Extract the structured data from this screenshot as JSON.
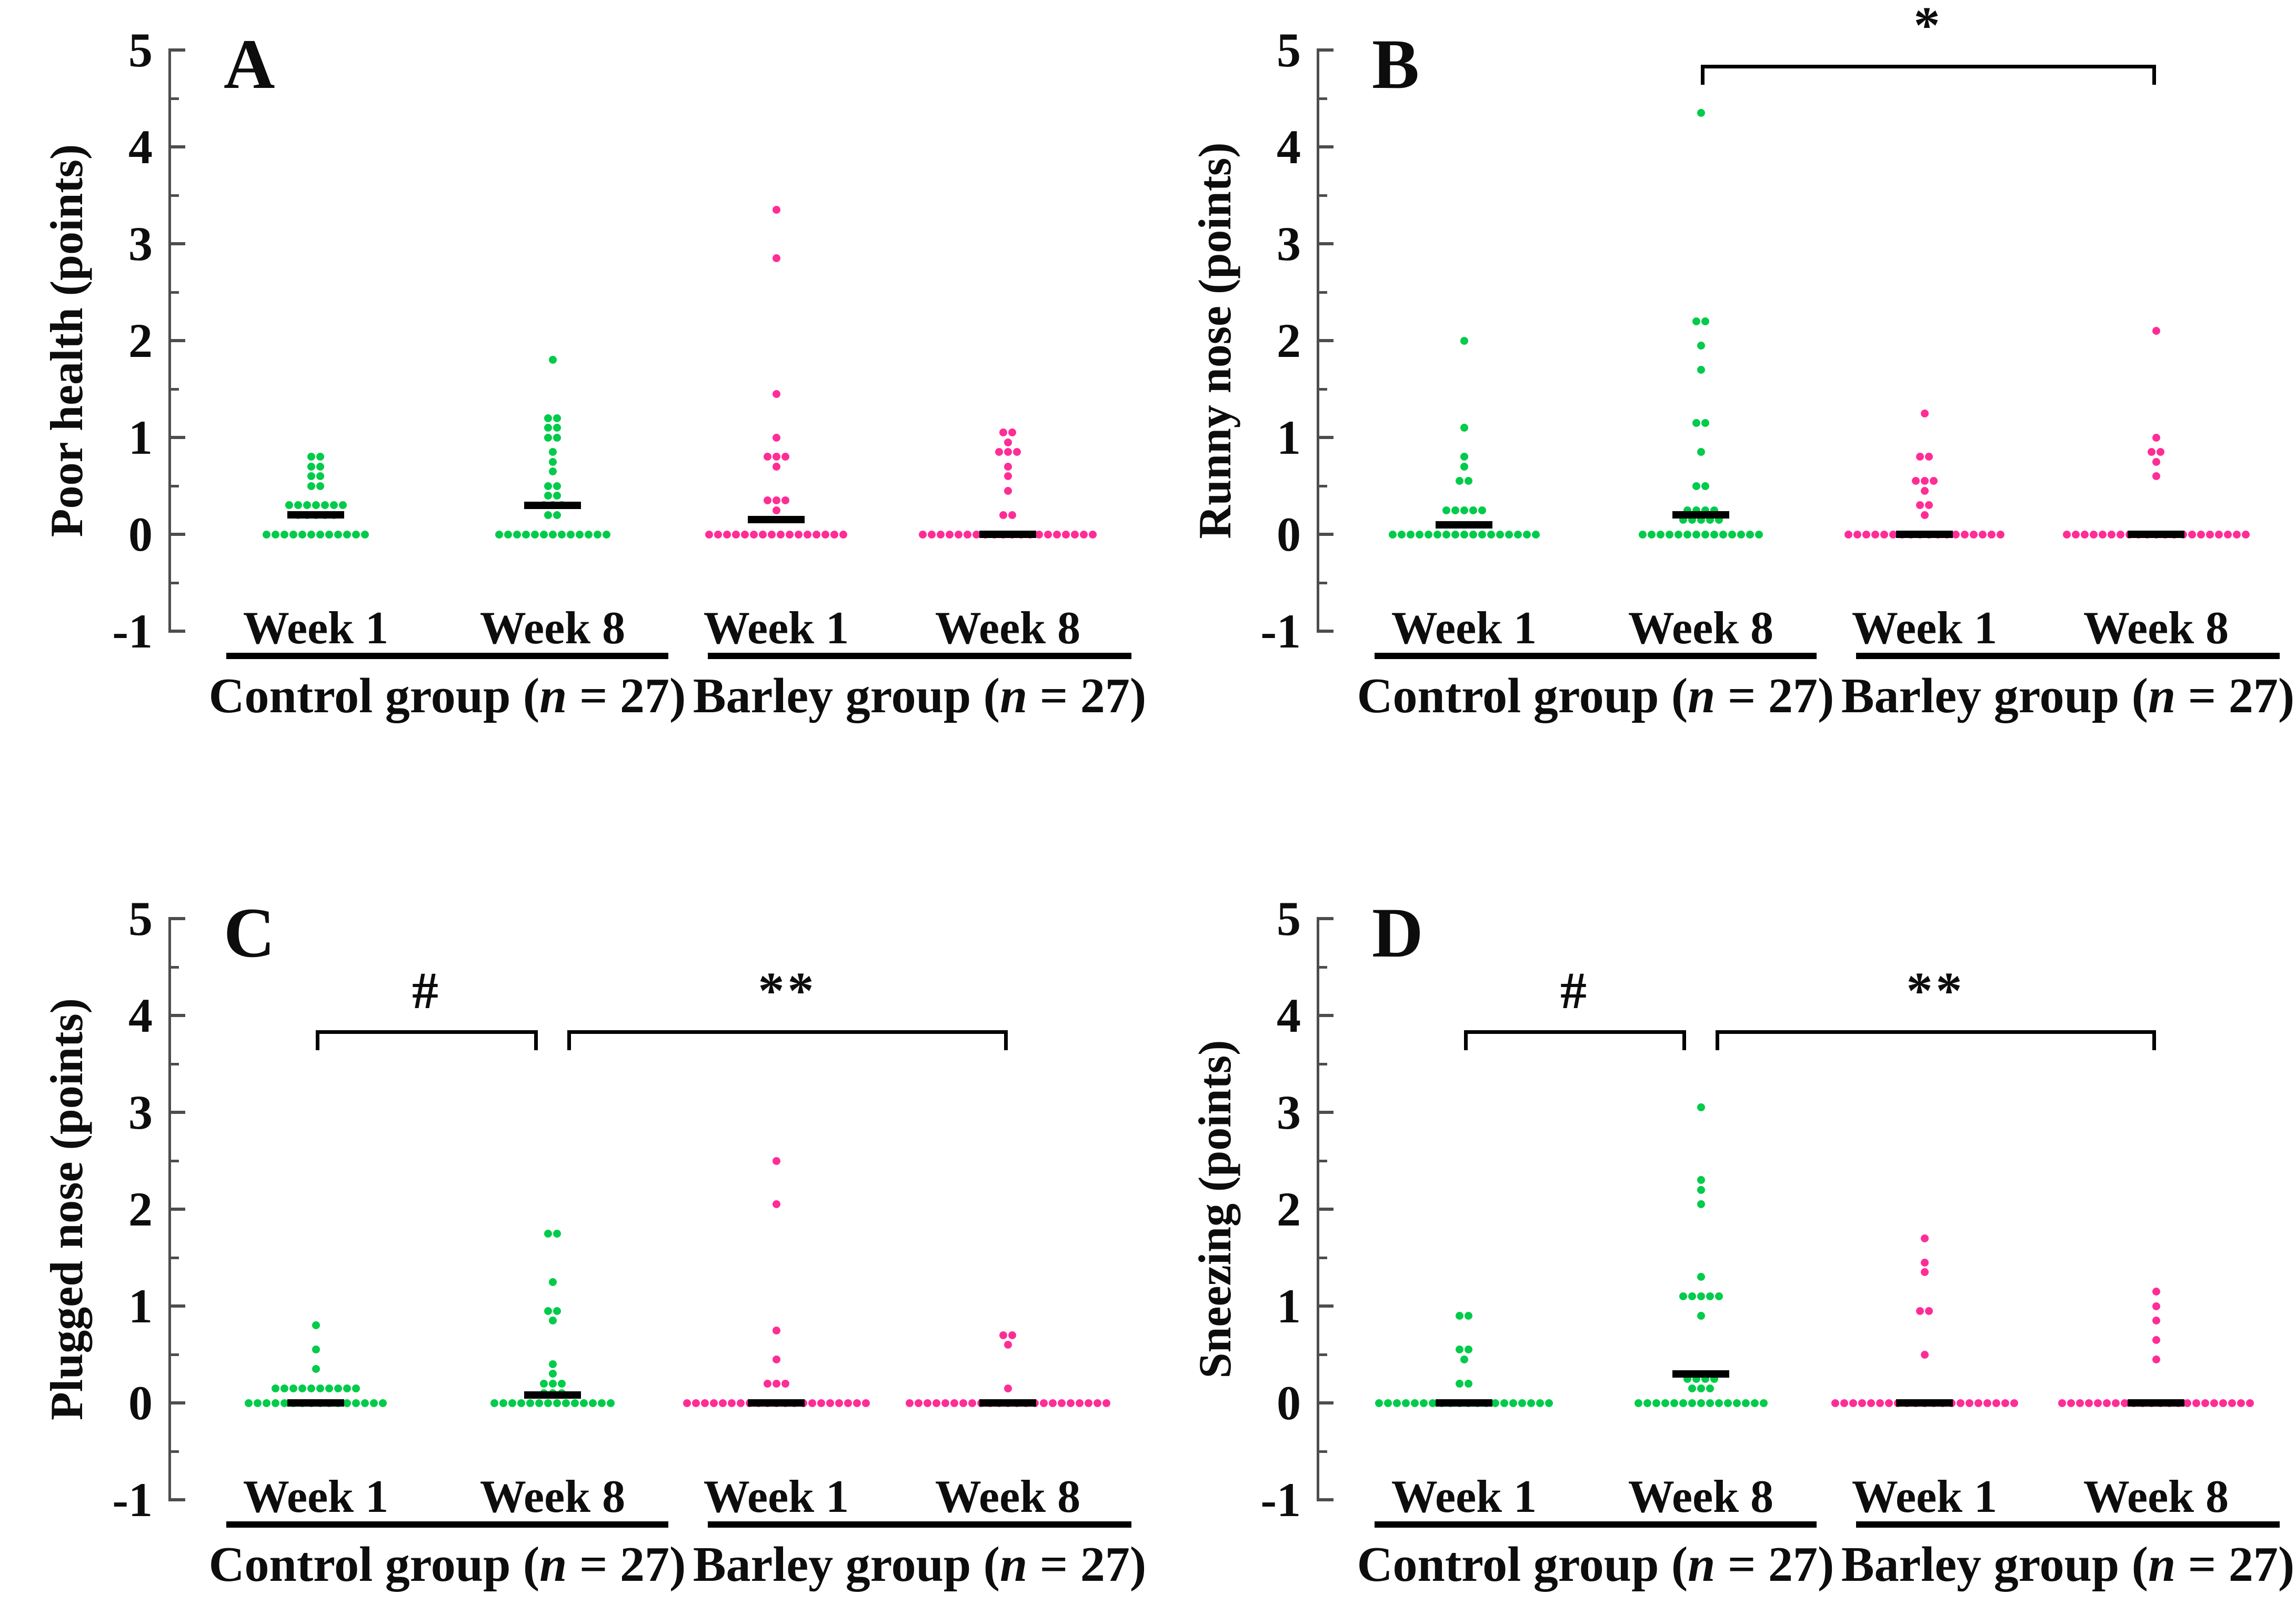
{
  "figure": {
    "background": "#ffffff",
    "colors": {
      "control": "#00CB4A",
      "barley": "#FF2D96",
      "median": "#000000",
      "axis": "#4d4d4d",
      "text": "#0d0d0d"
    },
    "y_ticks": [
      "5",
      "4",
      "3",
      "2",
      "1",
      "0",
      "-1"
    ],
    "week_labels": [
      "Week 1",
      "Week 8",
      "Week 1",
      "Week 8"
    ],
    "group_labels": [
      {
        "prefix": "Control group (",
        "n_symbol": "n",
        "suffix": " = 27)"
      },
      {
        "prefix": "Barley group (",
        "n_symbol": "n",
        "suffix": " = 27)"
      }
    ]
  },
  "chart_data": [
    {
      "type": "scatter",
      "panel_label": "A",
      "ylabel": "Poor health (points)",
      "ylim": [
        -1,
        5
      ],
      "y_major_step": 1,
      "y_minor_step": 0.5,
      "categories": [
        "Control Week 1",
        "Control Week 8",
        "Barley Week 1",
        "Barley Week 8"
      ],
      "series": [
        {
          "name": "Control Week 1",
          "color": "control",
          "median": 0.2,
          "stacks": [
            [
              0.8,
              2
            ],
            [
              0.7,
              2
            ],
            [
              0.6,
              2
            ],
            [
              0.5,
              2
            ],
            [
              0.3,
              7
            ],
            [
              0.2,
              5
            ],
            [
              0,
              12
            ]
          ]
        },
        {
          "name": "Control Week 8",
          "color": "control",
          "median": 0.3,
          "stacks": [
            [
              1.8,
              1
            ],
            [
              1.2,
              2
            ],
            [
              1.1,
              2
            ],
            [
              1.0,
              2
            ],
            [
              0.85,
              1
            ],
            [
              0.75,
              1
            ],
            [
              0.65,
              1
            ],
            [
              0.5,
              2
            ],
            [
              0.4,
              2
            ],
            [
              0.3,
              3
            ],
            [
              0.2,
              2
            ],
            [
              0,
              13
            ]
          ]
        },
        {
          "name": "Barley Week 1",
          "color": "barley",
          "median": 0.15,
          "stacks": [
            [
              3.35,
              1
            ],
            [
              2.85,
              1
            ],
            [
              1.45,
              1
            ],
            [
              1.0,
              1
            ],
            [
              0.8,
              3
            ],
            [
              0.7,
              1
            ],
            [
              0.35,
              3
            ],
            [
              0.25,
              1
            ],
            [
              0,
              16
            ]
          ]
        },
        {
          "name": "Barley Week 8",
          "color": "barley",
          "median": 0,
          "stacks": [
            [
              1.05,
              2
            ],
            [
              0.95,
              1
            ],
            [
              0.85,
              3
            ],
            [
              0.7,
              1
            ],
            [
              0.6,
              1
            ],
            [
              0.45,
              1
            ],
            [
              0.2,
              2
            ],
            [
              0,
              20
            ]
          ]
        }
      ],
      "brackets": []
    },
    {
      "type": "scatter",
      "panel_label": "B",
      "ylabel": "Runny nose (points)",
      "ylim": [
        -1,
        5
      ],
      "y_major_step": 1,
      "y_minor_step": 0.5,
      "categories": [
        "Control Week 1",
        "Control Week 8",
        "Barley Week 1",
        "Barley Week 8"
      ],
      "series": [
        {
          "name": "Control Week 1",
          "color": "control",
          "median": 0.1,
          "stacks": [
            [
              2.0,
              1
            ],
            [
              1.1,
              1
            ],
            [
              0.8,
              1
            ],
            [
              0.7,
              1
            ],
            [
              0.55,
              2
            ],
            [
              0.25,
              5
            ],
            [
              0,
              17
            ]
          ]
        },
        {
          "name": "Control Week 8",
          "color": "control",
          "median": 0.2,
          "stacks": [
            [
              4.35,
              1
            ],
            [
              2.2,
              2
            ],
            [
              1.95,
              1
            ],
            [
              1.7,
              1
            ],
            [
              1.15,
              2
            ],
            [
              0.85,
              1
            ],
            [
              0.5,
              2
            ],
            [
              0.25,
              4
            ],
            [
              0.15,
              5
            ],
            [
              0,
              14
            ]
          ]
        },
        {
          "name": "Barley Week 1",
          "color": "barley",
          "median": 0,
          "stacks": [
            [
              1.25,
              1
            ],
            [
              0.8,
              2
            ],
            [
              0.55,
              3
            ],
            [
              0.45,
              1
            ],
            [
              0.3,
              2
            ],
            [
              0.2,
              1
            ],
            [
              0,
              18
            ]
          ]
        },
        {
          "name": "Barley Week 8",
          "color": "barley",
          "median": 0,
          "stacks": [
            [
              2.1,
              1
            ],
            [
              1.0,
              1
            ],
            [
              0.85,
              2
            ],
            [
              0.75,
              1
            ],
            [
              0.6,
              1
            ],
            [
              0,
              21
            ]
          ]
        }
      ],
      "brackets": [
        {
          "from_group": 1,
          "to_group": 3,
          "y": 4.85,
          "label": "*"
        }
      ]
    },
    {
      "type": "scatter",
      "panel_label": "C",
      "ylabel": "Plugged nose (points)",
      "ylim": [
        -1,
        5
      ],
      "y_major_step": 1,
      "y_minor_step": 0.5,
      "categories": [
        "Control Week 1",
        "Control Week 8",
        "Barley Week 1",
        "Barley Week 8"
      ],
      "series": [
        {
          "name": "Control Week 1",
          "color": "control",
          "median": 0,
          "stacks": [
            [
              0.8,
              1
            ],
            [
              0.55,
              1
            ],
            [
              0.35,
              1
            ],
            [
              0.15,
              10
            ],
            [
              0,
              16
            ]
          ]
        },
        {
          "name": "Control Week 8",
          "color": "control",
          "median": 0.08,
          "stacks": [
            [
              1.75,
              2
            ],
            [
              1.25,
              1
            ],
            [
              0.95,
              2
            ],
            [
              0.85,
              1
            ],
            [
              0.4,
              1
            ],
            [
              0.3,
              1
            ],
            [
              0.2,
              3
            ],
            [
              0.1,
              3
            ],
            [
              0,
              14
            ]
          ]
        },
        {
          "name": "Barley Week 1",
          "color": "barley",
          "median": 0,
          "stacks": [
            [
              2.5,
              1
            ],
            [
              2.05,
              1
            ],
            [
              0.75,
              1
            ],
            [
              0.45,
              1
            ],
            [
              0.2,
              3
            ],
            [
              0,
              21
            ]
          ]
        },
        {
          "name": "Barley Week 8",
          "color": "barley",
          "median": 0,
          "stacks": [
            [
              0.7,
              2
            ],
            [
              0.6,
              1
            ],
            [
              0.15,
              1
            ],
            [
              0,
              23
            ]
          ]
        }
      ],
      "brackets": [
        {
          "from_group": 0,
          "to_group": 1,
          "y": 3.85,
          "label": "#"
        },
        {
          "from_group": 1,
          "to_group": 3,
          "y": 3.85,
          "label": "**"
        }
      ]
    },
    {
      "type": "scatter",
      "panel_label": "D",
      "ylabel": "Sneezing (points)",
      "ylim": [
        -1,
        5
      ],
      "y_major_step": 1,
      "y_minor_step": 0.5,
      "categories": [
        "Control Week 1",
        "Control Week 8",
        "Barley Week 1",
        "Barley Week 8"
      ],
      "series": [
        {
          "name": "Control Week 1",
          "color": "control",
          "median": 0,
          "stacks": [
            [
              0.9,
              2
            ],
            [
              0.55,
              2
            ],
            [
              0.45,
              1
            ],
            [
              0.2,
              2
            ],
            [
              0,
              20
            ]
          ]
        },
        {
          "name": "Control Week 8",
          "color": "control",
          "median": 0.3,
          "stacks": [
            [
              3.05,
              1
            ],
            [
              2.3,
              1
            ],
            [
              2.2,
              1
            ],
            [
              2.05,
              1
            ],
            [
              1.3,
              1
            ],
            [
              1.1,
              5
            ],
            [
              0.9,
              1
            ],
            [
              0.25,
              4
            ],
            [
              0.15,
              3
            ],
            [
              0,
              15
            ]
          ]
        },
        {
          "name": "Barley Week 1",
          "color": "barley",
          "median": 0,
          "stacks": [
            [
              1.7,
              1
            ],
            [
              1.45,
              1
            ],
            [
              1.35,
              1
            ],
            [
              0.95,
              2
            ],
            [
              0.5,
              1
            ],
            [
              0,
              21
            ]
          ]
        },
        {
          "name": "Barley Week 8",
          "color": "barley",
          "median": 0,
          "stacks": [
            [
              1.15,
              1
            ],
            [
              1.0,
              1
            ],
            [
              0.85,
              1
            ],
            [
              0.65,
              1
            ],
            [
              0.45,
              1
            ],
            [
              0,
              22
            ]
          ]
        }
      ],
      "brackets": [
        {
          "from_group": 0,
          "to_group": 1,
          "y": 3.85,
          "label": "#"
        },
        {
          "from_group": 1,
          "to_group": 3,
          "y": 3.85,
          "label": "**"
        }
      ]
    }
  ]
}
